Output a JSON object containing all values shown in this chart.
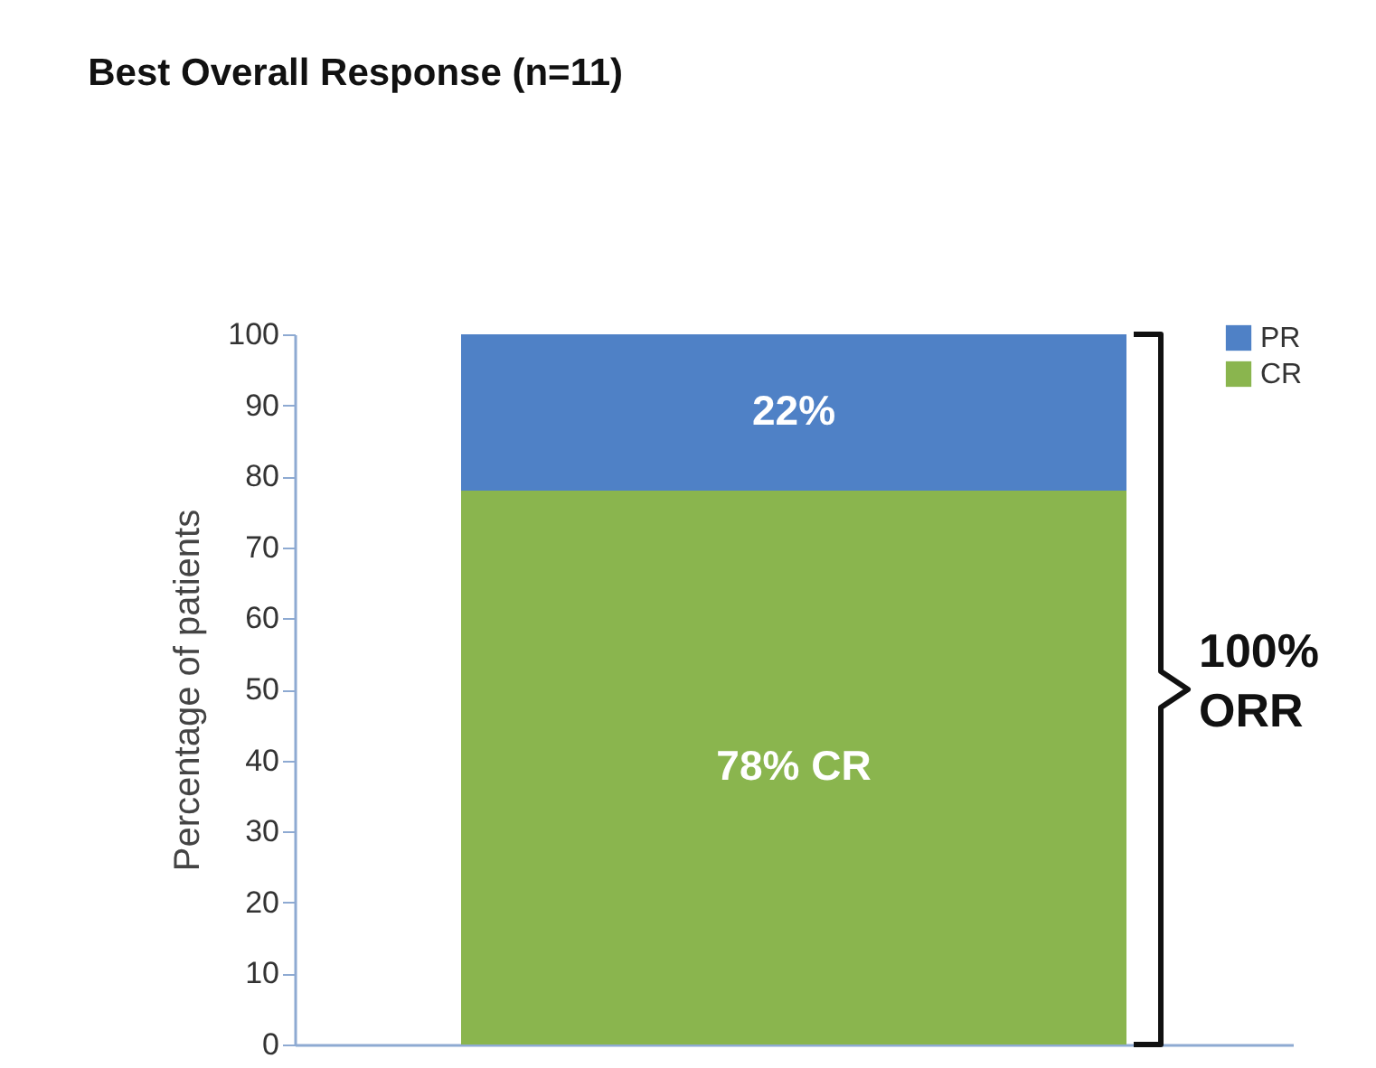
{
  "chart_data": {
    "type": "bar",
    "title": "Best Overall Response (n=11)",
    "ylabel": "Percentage of patients",
    "categories": [
      null
    ],
    "stacked": true,
    "tick_labels": "y",
    "ylim": [
      0,
      100
    ],
    "yticks": [
      0,
      10,
      20,
      30,
      40,
      50,
      60,
      70,
      80,
      90,
      100
    ],
    "grid": false,
    "legend": "top right",
    "series": [
      {
        "name": "CR",
        "color": "#8ab54e",
        "values": [
          78
        ],
        "value_labels": [
          "78% CR"
        ]
      },
      {
        "name": "PR",
        "color": "#4f81c6",
        "values": [
          22
        ],
        "value_labels": [
          "22%"
        ]
      }
    ],
    "annotations": [
      "100% ORR"
    ]
  }
}
